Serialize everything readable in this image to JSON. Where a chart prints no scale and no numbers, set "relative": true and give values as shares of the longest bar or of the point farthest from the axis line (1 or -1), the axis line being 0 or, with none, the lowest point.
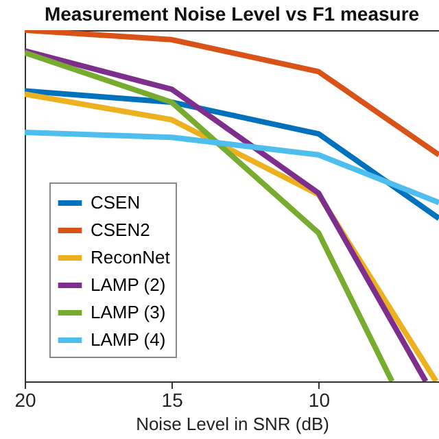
{
  "chart_data": {
    "type": "line",
    "title": "Measurement Noise Level vs F1 measure",
    "xlabel": "Noise Level in SNR (dB)",
    "relative": true,
    "xlim": [
      20,
      5.9
    ],
    "xticks": [
      20,
      15,
      10
    ],
    "grid": false,
    "legend": "bottom left",
    "marker": "none",
    "line_style": "solid",
    "series": [
      {
        "name": "CSEN",
        "color": "#0072bd",
        "x": [
          20,
          15,
          10,
          5.9
        ],
        "values": [
          0.827,
          0.795,
          0.705,
          0.464
        ]
      },
      {
        "name": "CSEN2",
        "color": "#d95319",
        "x": [
          20,
          15,
          10,
          5.9
        ],
        "values": [
          1.0,
          0.973,
          0.882,
          0.645
        ]
      },
      {
        "name": "ReconNet",
        "color": "#edb120",
        "x": [
          20,
          15,
          10,
          6.0
        ],
        "values": [
          0.818,
          0.745,
          0.532,
          0
        ]
      },
      {
        "name": "LAMP (2)",
        "color": "#7e2f8e",
        "x": [
          20,
          15,
          10,
          6.35
        ],
        "values": [
          0.941,
          0.832,
          0.536,
          0
        ]
      },
      {
        "name": "LAMP (3)",
        "color": "#77ac30",
        "x": [
          20,
          15,
          10,
          7.5
        ],
        "values": [
          0.936,
          0.795,
          0.423,
          0
        ]
      },
      {
        "name": "LAMP (4)",
        "color": "#4dbeee",
        "x": [
          20,
          15,
          10,
          5.9
        ],
        "values": [
          0.709,
          0.695,
          0.645,
          0.509
        ]
      }
    ]
  }
}
